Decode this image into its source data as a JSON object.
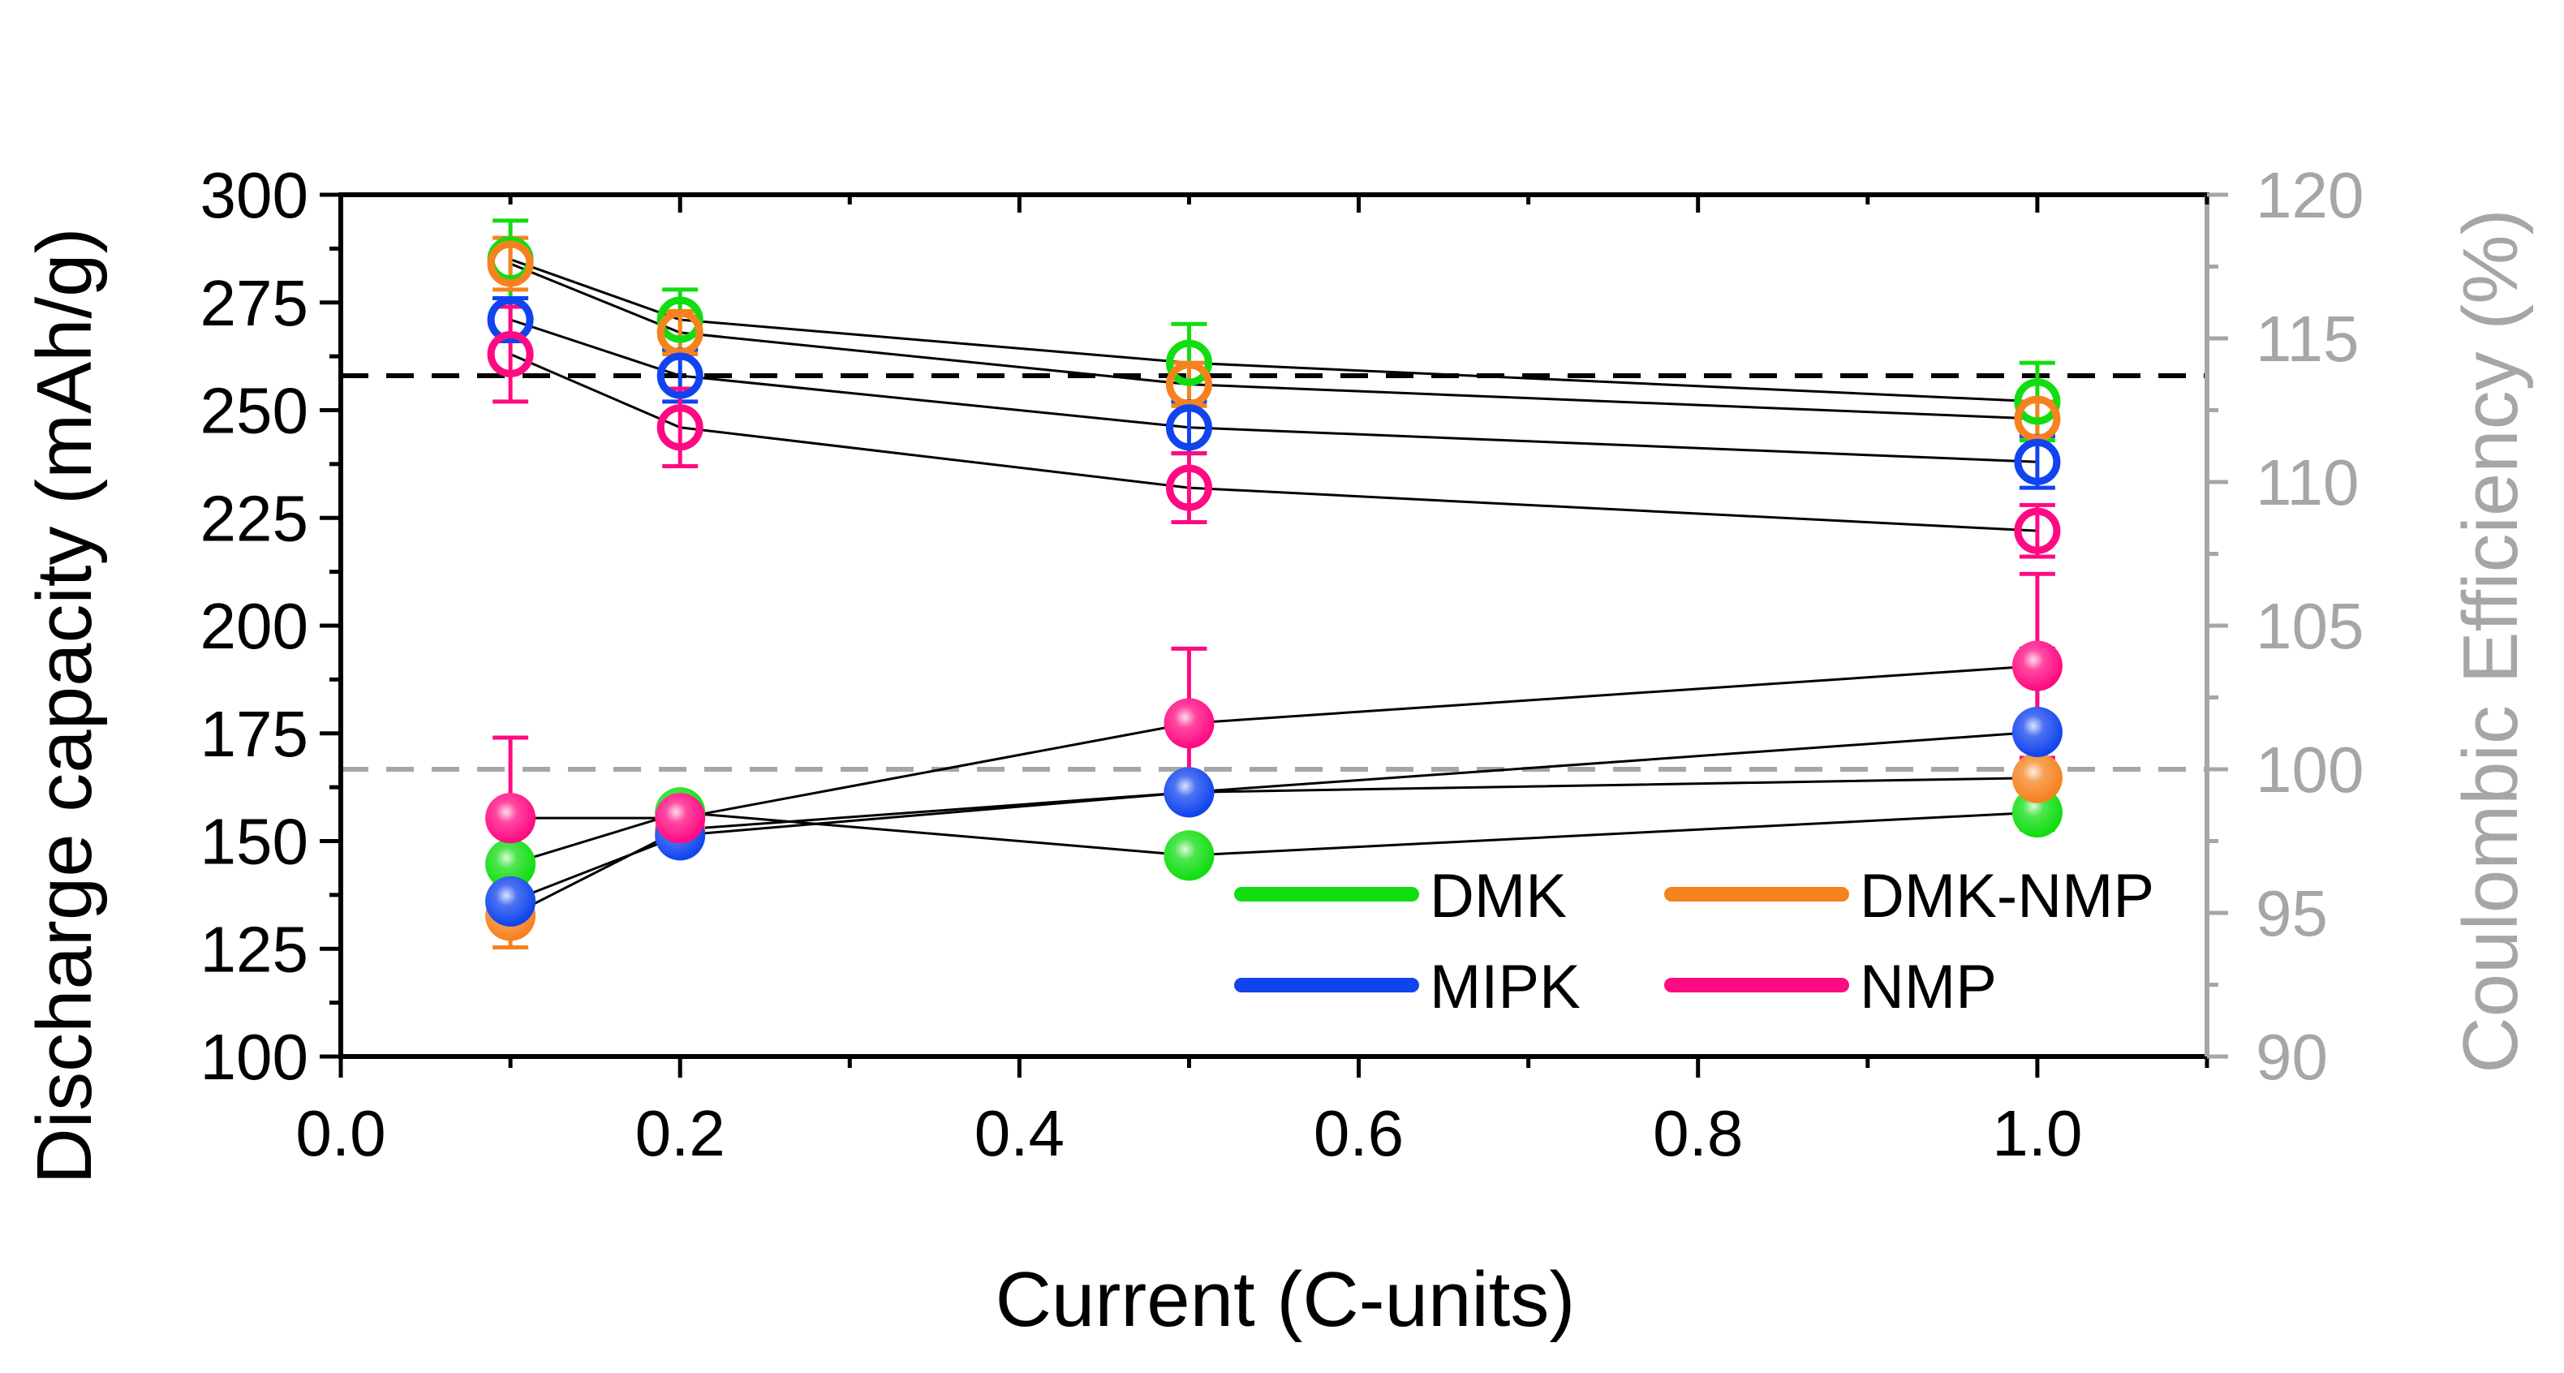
{
  "chart_data": {
    "type": "scatter",
    "xlabel": "Current (C-units)",
    "ylabel_left": "Discharge capacity (mAh/g)",
    "ylabel_right": "Coulombic Efficiency (%)",
    "xlim": [
      0.0,
      1.1
    ],
    "ylim_left": [
      100,
      300
    ],
    "ylim_right": [
      90,
      120
    ],
    "x_ticks": [
      "0.0",
      "0.2",
      "0.4",
      "0.6",
      "0.8",
      "1.0"
    ],
    "y_left_ticks": [
      "100",
      "125",
      "150",
      "175",
      "200",
      "225",
      "250",
      "275",
      "300"
    ],
    "y_right_ticks": [
      "90",
      "95",
      "100",
      "105",
      "110",
      "115",
      "120"
    ],
    "reference_lines": [
      {
        "axis": "left",
        "value": 258,
        "color": "#000000",
        "style": "dashed"
      },
      {
        "axis": "right",
        "value": 100,
        "color": "#a6a6a6",
        "style": "dashed"
      }
    ],
    "x": [
      0.1,
      0.2,
      0.5,
      1.0
    ],
    "series": [
      {
        "name": "DMK",
        "color": "#11dd11",
        "capacity": [
          285,
          271,
          261,
          252
        ],
        "capacity_err": [
          9,
          7,
          9,
          9
        ],
        "efficiency": [
          96.7,
          98.5,
          97.0,
          98.5
        ],
        "efficiency_err": [
          0.4,
          0.4,
          0.4,
          0.6
        ]
      },
      {
        "name": "DMK-NMP",
        "color": "#f5821f",
        "capacity": [
          284,
          268,
          256,
          248
        ],
        "capacity_err": [
          6,
          5,
          5,
          4
        ],
        "efficiency": [
          94.9,
          97.9,
          99.2,
          99.7
        ],
        "efficiency_err": [
          1.1,
          0.4,
          0.4,
          0.4
        ]
      },
      {
        "name": "MIPK",
        "color": "#1144ee",
        "capacity": [
          271,
          258,
          246,
          238
        ],
        "capacity_err": [
          5,
          6,
          6,
          6
        ],
        "efficiency": [
          95.4,
          97.7,
          99.2,
          101.3
        ],
        "efficiency_err": [
          0.5,
          0.4,
          0.4,
          2.9
        ]
      },
      {
        "name": "NMP",
        "color": "#ff0a82",
        "capacity": [
          263,
          246,
          232,
          222
        ],
        "capacity_err": [
          11,
          9,
          8,
          6
        ],
        "efficiency": [
          98.3,
          98.3,
          101.6,
          103.6
        ],
        "efficiency_err": [
          2.8,
          0.4,
          2.6,
          3.2
        ]
      }
    ],
    "legend": {
      "position": "bottom-right",
      "entries": [
        "DMK",
        "DMK-NMP",
        "MIPK",
        "NMP"
      ]
    }
  }
}
